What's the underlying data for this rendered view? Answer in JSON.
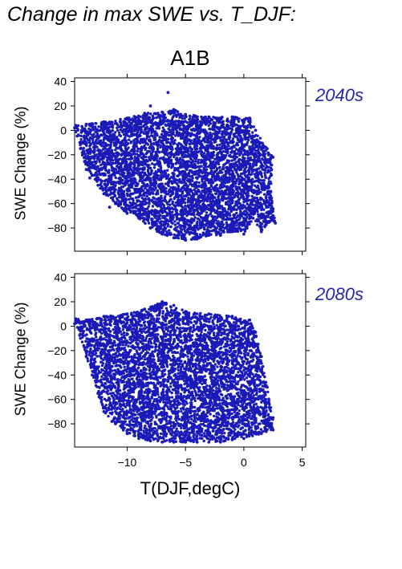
{
  "figure": {
    "title": "Change in max SWE vs. T_DJF:",
    "scenario": "A1B",
    "xlabel": "T(DJF,degC)"
  },
  "chart_data": [
    {
      "type": "scatter",
      "panel": "2040s",
      "ylabel": "SWE Change (%)",
      "xlabel": "T(DJF,degC)",
      "xlim": [
        -14.5,
        5.3
      ],
      "ylim": [
        -99,
        43
      ],
      "xticks": [
        -10,
        -5,
        0,
        5
      ],
      "xtick_labels": [],
      "yticks": [
        40,
        20,
        0,
        -20,
        -40,
        -60,
        -80
      ],
      "color": "#1a1ab8",
      "series": [
        {
          "points": [
            [
              -14.4,
              4
            ],
            [
              -13.5,
              5
            ],
            [
              -12,
              7
            ],
            [
              -10,
              10
            ],
            [
              -8.5,
              14
            ],
            [
              -7,
              15
            ],
            [
              -6,
              17
            ],
            [
              -5,
              13
            ],
            [
              -3,
              11
            ],
            [
              -1,
              11
            ],
            [
              0.5,
              10
            ],
            [
              1,
              0
            ],
            [
              2,
              -15
            ],
            [
              2.5,
              -22
            ],
            [
              2.3,
              -50
            ],
            [
              2.7,
              -76
            ],
            [
              2.2,
              -75
            ],
            [
              1.5,
              -83
            ],
            [
              0.8,
              -72
            ],
            [
              0,
              -85
            ],
            [
              -1,
              -83
            ],
            [
              -2,
              -86
            ],
            [
              -3,
              -86
            ],
            [
              -4,
              -89
            ],
            [
              -5,
              -90
            ],
            [
              -6,
              -88
            ],
            [
              -7,
              -85
            ],
            [
              -8,
              -80
            ],
            [
              -9,
              -72
            ],
            [
              -10,
              -68
            ],
            [
              -11,
              -60
            ],
            [
              -12,
              -52
            ],
            [
              -12.5,
              -45
            ],
            [
              -13,
              -37
            ],
            [
              -13.5,
              -32
            ],
            [
              -14,
              -15
            ],
            [
              -14.5,
              2
            ],
            [
              -6.5,
              31
            ],
            [
              -8,
              20
            ],
            [
              -13.2,
              -39
            ],
            [
              -11.5,
              -63
            ],
            [
              -9.3,
              -68
            ],
            [
              -1.5,
              -73
            ]
          ]
        }
      ]
    },
    {
      "type": "scatter",
      "panel": "2080s",
      "ylabel": "SWE Change (%)",
      "xlabel": "T(DJF,degC)",
      "xlim": [
        -14.5,
        5.3
      ],
      "ylim": [
        -99,
        43
      ],
      "xticks": [
        -10,
        -5,
        0,
        5
      ],
      "xtick_labels": [
        "−10",
        "−5",
        "0",
        "5"
      ],
      "yticks": [
        40,
        20,
        0,
        -20,
        -40,
        -60,
        -80
      ],
      "color": "#1a1ab8",
      "series": [
        {
          "points": [
            [
              -14.4,
              6
            ],
            [
              -13.5,
              5
            ],
            [
              -12,
              8
            ],
            [
              -10,
              10
            ],
            [
              -8.5,
              14
            ],
            [
              -7,
              20
            ],
            [
              -6,
              17
            ],
            [
              -5,
              12
            ],
            [
              -3,
              10
            ],
            [
              -1,
              8
            ],
            [
              0.5,
              5
            ],
            [
              1,
              -5
            ],
            [
              1.5,
              -25
            ],
            [
              2,
              -50
            ],
            [
              2.5,
              -75
            ],
            [
              2.5,
              -85
            ],
            [
              1.5,
              -88
            ],
            [
              0,
              -92
            ],
            [
              -1,
              -93
            ],
            [
              -2,
              -95
            ],
            [
              -3,
              -95
            ],
            [
              -4,
              -95
            ],
            [
              -5,
              -95
            ],
            [
              -6,
              -95
            ],
            [
              -7,
              -95
            ],
            [
              -8,
              -94
            ],
            [
              -9,
              -92
            ],
            [
              -10,
              -88
            ],
            [
              -11,
              -80
            ],
            [
              -12,
              -70
            ],
            [
              -12.5,
              -55
            ],
            [
              -13,
              -40
            ],
            [
              -13.5,
              -25
            ],
            [
              -14,
              -10
            ],
            [
              -14.5,
              2
            ],
            [
              -7.5,
              17
            ],
            [
              -12.4,
              -58
            ],
            [
              -11.3,
              -78
            ],
            [
              1.8,
              -83
            ]
          ]
        }
      ]
    }
  ],
  "panels": [
    {
      "label": "2040s"
    },
    {
      "label": "2080s"
    }
  ]
}
